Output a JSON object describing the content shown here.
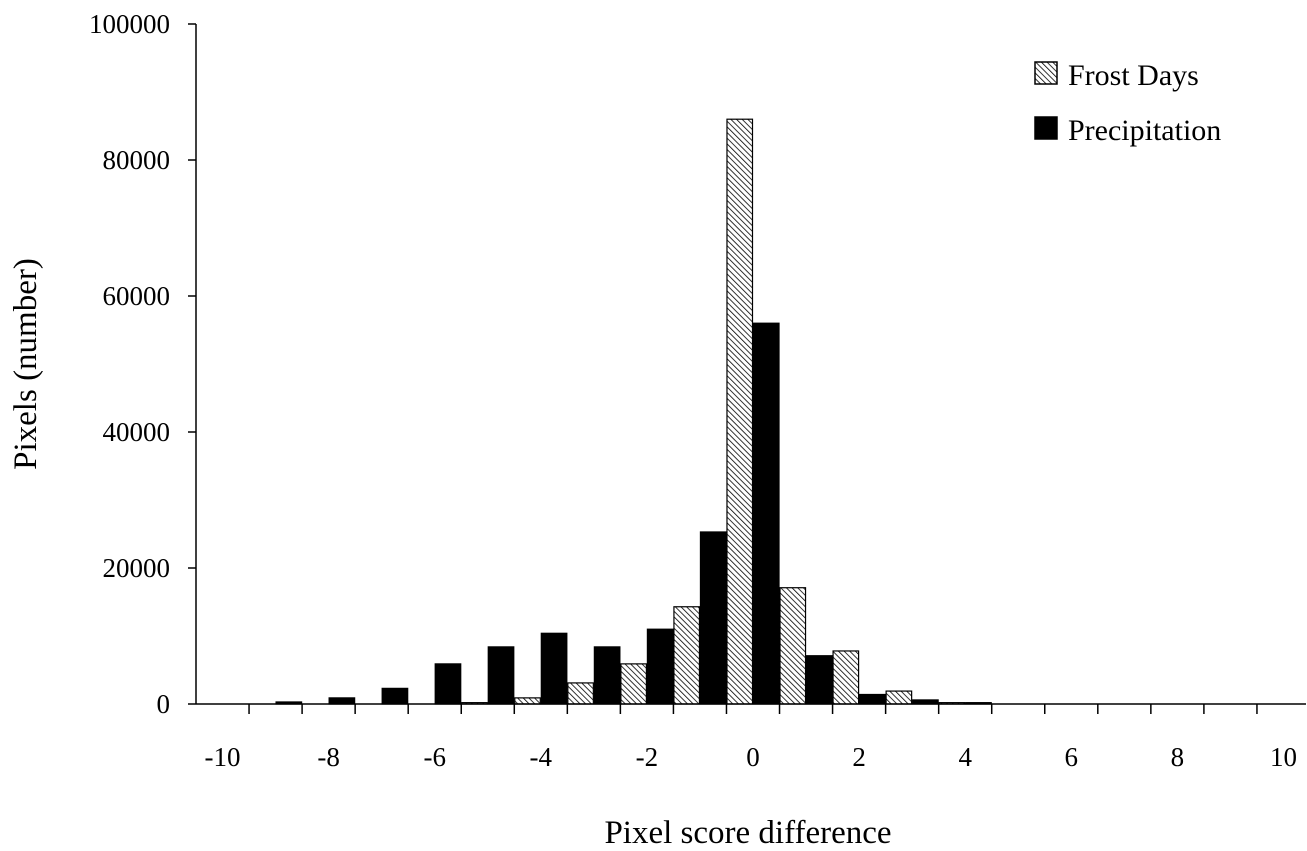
{
  "chart_data": {
    "type": "bar",
    "title": "",
    "xlabel": "Pixel score difference",
    "ylabel": "Pixels (number)",
    "xlim": [
      -10,
      10
    ],
    "ylim": [
      0,
      100000
    ],
    "x_ticks": [
      "-10",
      "-8",
      "-6",
      "-4",
      "-2",
      "0",
      "2",
      "4",
      "6",
      "8",
      "10"
    ],
    "y_ticks": [
      "0",
      "20000",
      "40000",
      "60000",
      "80000",
      "100000"
    ],
    "categories": [
      -10,
      -9,
      -8,
      -7,
      -6,
      -5,
      -4,
      -3,
      -2,
      -1,
      0,
      1,
      2,
      3,
      4,
      5,
      6,
      7,
      8,
      9
    ],
    "series": [
      {
        "name": "Frost Days",
        "fill": "hatched",
        "values": [
          0,
          0,
          0,
          0,
          0,
          200,
          900,
          3100,
          5900,
          14300,
          86000,
          17100,
          7800,
          1900,
          200,
          0,
          0,
          0,
          0,
          0
        ]
      },
      {
        "name": "Precipitation",
        "fill": "#000000",
        "values": [
          0,
          300,
          900,
          2300,
          5900,
          8400,
          10400,
          8400,
          11000,
          25300,
          56000,
          7100,
          1400,
          600,
          200,
          0,
          0,
          0,
          0,
          0
        ]
      }
    ],
    "legend_position": "top-right",
    "grid": false
  }
}
